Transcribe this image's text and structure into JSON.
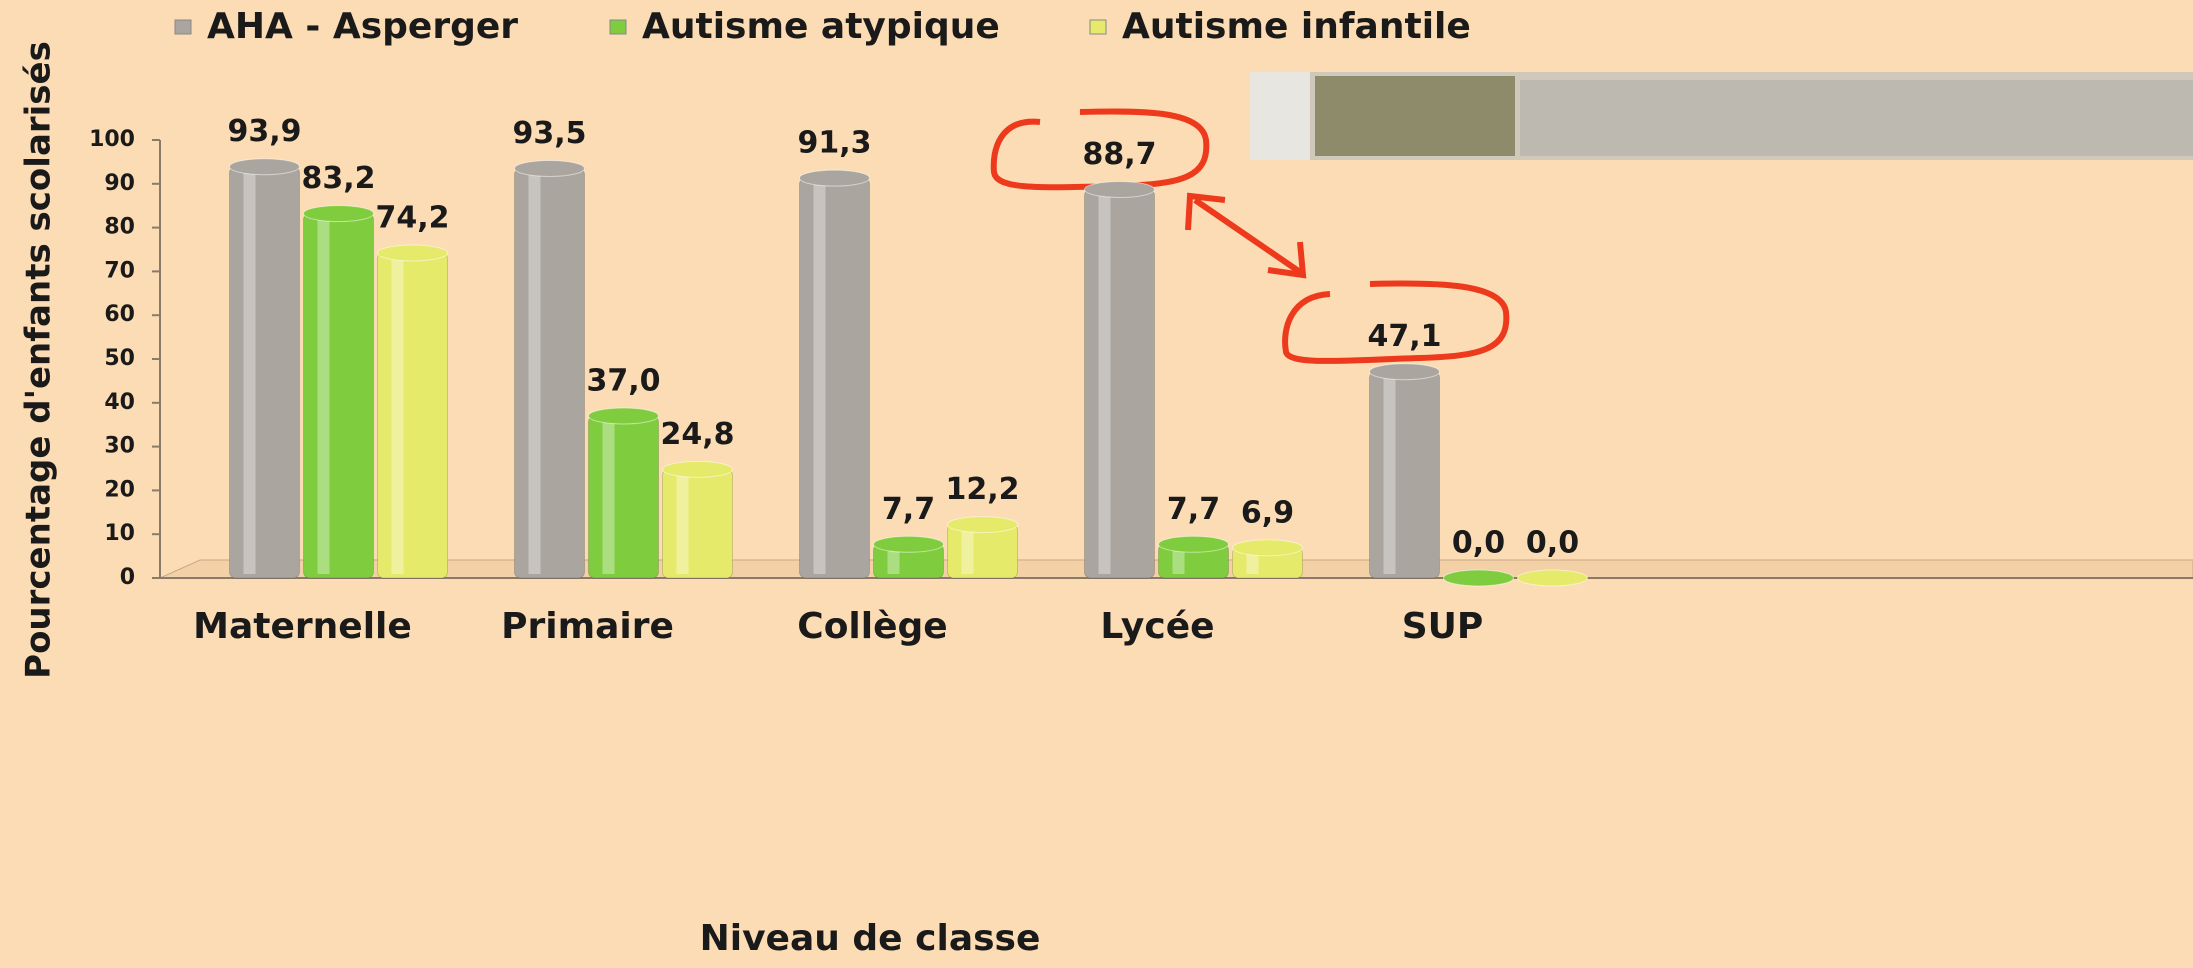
{
  "chart_data": {
    "type": "bar",
    "x_label": "Niveau de classe",
    "y_label": "Pourcentage d'enfants scolarisés",
    "categories": [
      "Maternelle",
      "Primaire",
      "Collège",
      "Lycée",
      "SUP"
    ],
    "series": [
      {
        "name": "AHA - Asperger",
        "color": "#aaa59e",
        "values": [
          93.9,
          93.5,
          91.3,
          88.7,
          47.1
        ],
        "value_labels": [
          "93,9",
          "93,5",
          "91,3",
          "88,7",
          "47,1"
        ]
      },
      {
        "name": "Autisme atypique",
        "color": "#7fcc3e",
        "values": [
          83.2,
          37.0,
          7.7,
          7.7,
          0.0
        ],
        "value_labels": [
          "83,2",
          "37,0",
          "7,7",
          "7,7",
          "0,0"
        ]
      },
      {
        "name": "Autisme infantile",
        "color": "#e6ea6a",
        "values": [
          74.2,
          24.8,
          12.2,
          6.9,
          0.0
        ],
        "value_labels": [
          "74,2",
          "24,8",
          "12,2",
          "6,9",
          "0,0"
        ]
      }
    ],
    "ylim": [
      0,
      100
    ],
    "yticks": [
      0,
      10,
      20,
      30,
      40,
      50,
      60,
      70,
      80,
      90,
      100
    ],
    "legend": "top"
  }
}
